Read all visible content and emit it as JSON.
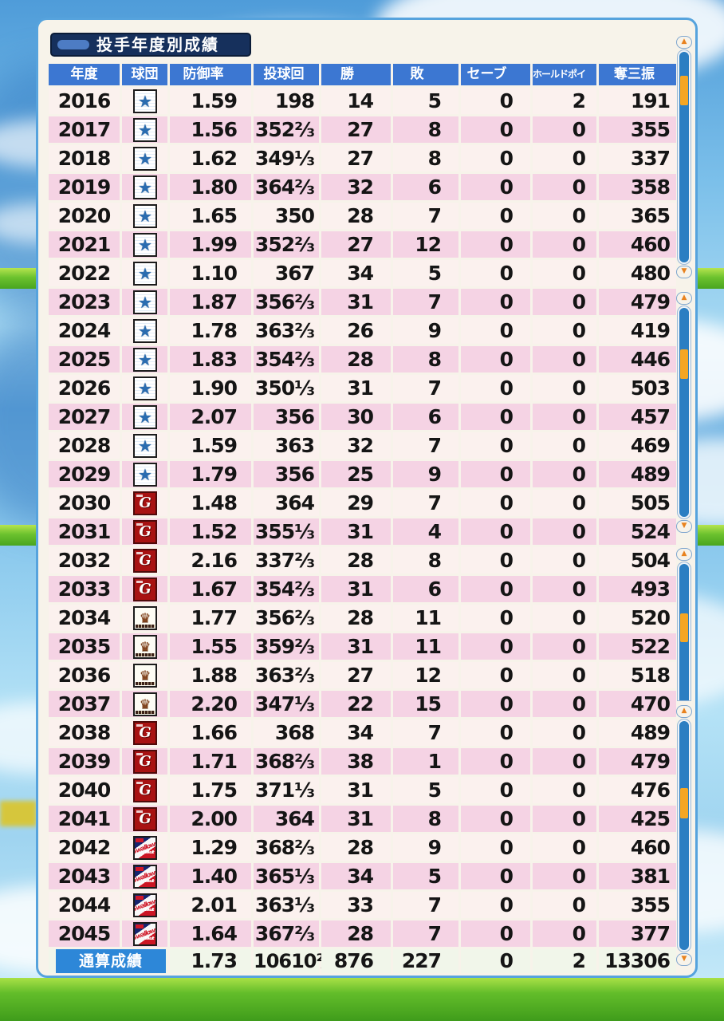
{
  "title": "投手年度別成績",
  "columns": [
    "年度",
    "球団",
    "防御率",
    "投球回",
    "勝",
    "敗",
    "セーブ",
    "ホールドポイント",
    "奪三振"
  ],
  "teams": {
    "baystars": {
      "glyph": "★"
    },
    "giants": {
      "letter": "G"
    },
    "crest": {
      "glyph": "♛"
    },
    "swallows": {
      "script": "Swallows",
      "brand": "Yakult"
    }
  },
  "rows": [
    {
      "year": "2016",
      "team": "baystars",
      "era": "1.59",
      "ip": "198",
      "w": "14",
      "l": "5",
      "sv": "0",
      "hp": "2",
      "so": "191",
      "gold": []
    },
    {
      "year": "2017",
      "team": "baystars",
      "era": "1.56",
      "ip": "352⅔",
      "w": "27",
      "l": "8",
      "sv": "0",
      "hp": "0",
      "so": "355",
      "gold": [
        "era",
        "w",
        "so"
      ]
    },
    {
      "year": "2018",
      "team": "baystars",
      "era": "1.62",
      "ip": "349⅓",
      "w": "27",
      "l": "8",
      "sv": "0",
      "hp": "0",
      "so": "337",
      "gold": [
        "era",
        "w",
        "so"
      ]
    },
    {
      "year": "2019",
      "team": "baystars",
      "era": "1.80",
      "ip": "364⅔",
      "w": "32",
      "l": "6",
      "sv": "0",
      "hp": "0",
      "so": "358",
      "gold": [
        "w",
        "so"
      ]
    },
    {
      "year": "2020",
      "team": "baystars",
      "era": "1.65",
      "ip": "350",
      "w": "28",
      "l": "7",
      "sv": "0",
      "hp": "0",
      "so": "365",
      "gold": [
        "era",
        "w",
        "so"
      ]
    },
    {
      "year": "2021",
      "team": "baystars",
      "era": "1.99",
      "ip": "352⅔",
      "w": "27",
      "l": "12",
      "sv": "0",
      "hp": "0",
      "so": "460",
      "gold": [
        "w",
        "so"
      ]
    },
    {
      "year": "2022",
      "team": "baystars",
      "era": "1.10",
      "ip": "367",
      "w": "34",
      "l": "5",
      "sv": "0",
      "hp": "0",
      "so": "480",
      "gold": [
        "era",
        "w",
        "so"
      ]
    },
    {
      "year": "2023",
      "team": "baystars",
      "era": "1.87",
      "ip": "356⅔",
      "w": "31",
      "l": "7",
      "sv": "0",
      "hp": "0",
      "so": "479",
      "gold": [
        "era",
        "w",
        "so"
      ]
    },
    {
      "year": "2024",
      "team": "baystars",
      "era": "1.78",
      "ip": "363⅔",
      "w": "26",
      "l": "9",
      "sv": "0",
      "hp": "0",
      "so": "419",
      "gold": [
        "era",
        "w",
        "so"
      ]
    },
    {
      "year": "2025",
      "team": "baystars",
      "era": "1.83",
      "ip": "354⅔",
      "w": "28",
      "l": "8",
      "sv": "0",
      "hp": "0",
      "so": "446",
      "gold": [
        "w",
        "so"
      ]
    },
    {
      "year": "2026",
      "team": "baystars",
      "era": "1.90",
      "ip": "350⅓",
      "w": "31",
      "l": "7",
      "sv": "0",
      "hp": "0",
      "so": "503",
      "gold": [
        "era",
        "w",
        "so"
      ]
    },
    {
      "year": "2027",
      "team": "baystars",
      "era": "2.07",
      "ip": "356",
      "w": "30",
      "l": "6",
      "sv": "0",
      "hp": "0",
      "so": "457",
      "gold": [
        "w",
        "so"
      ]
    },
    {
      "year": "2028",
      "team": "baystars",
      "era": "1.59",
      "ip": "363",
      "w": "32",
      "l": "7",
      "sv": "0",
      "hp": "0",
      "so": "469",
      "gold": [
        "era",
        "w",
        "so"
      ]
    },
    {
      "year": "2029",
      "team": "baystars",
      "era": "1.79",
      "ip": "356",
      "w": "25",
      "l": "9",
      "sv": "0",
      "hp": "0",
      "so": "489",
      "gold": [
        "era",
        "w",
        "so"
      ]
    },
    {
      "year": "2030",
      "team": "giants",
      "era": "1.48",
      "ip": "364",
      "w": "29",
      "l": "7",
      "sv": "0",
      "hp": "0",
      "so": "505",
      "gold": [
        "era",
        "w",
        "so"
      ]
    },
    {
      "year": "2031",
      "team": "giants",
      "era": "1.52",
      "ip": "355⅓",
      "w": "31",
      "l": "4",
      "sv": "0",
      "hp": "0",
      "so": "524",
      "gold": [
        "era",
        "w",
        "so"
      ]
    },
    {
      "year": "2032",
      "team": "giants",
      "era": "2.16",
      "ip": "337⅔",
      "w": "28",
      "l": "8",
      "sv": "0",
      "hp": "0",
      "so": "504",
      "gold": [
        "era",
        "w",
        "so"
      ]
    },
    {
      "year": "2033",
      "team": "giants",
      "era": "1.67",
      "ip": "354⅔",
      "w": "31",
      "l": "6",
      "sv": "0",
      "hp": "0",
      "so": "493",
      "gold": [
        "era",
        "w",
        "so"
      ]
    },
    {
      "year": "2034",
      "team": "crest",
      "era": "1.77",
      "ip": "356⅔",
      "w": "28",
      "l": "11",
      "sv": "0",
      "hp": "0",
      "so": "520",
      "gold": [
        "era",
        "w",
        "so"
      ]
    },
    {
      "year": "2035",
      "team": "crest",
      "era": "1.55",
      "ip": "359⅔",
      "w": "31",
      "l": "11",
      "sv": "0",
      "hp": "0",
      "so": "522",
      "gold": [
        "w",
        "so"
      ]
    },
    {
      "year": "2036",
      "team": "crest",
      "era": "1.88",
      "ip": "363⅔",
      "w": "27",
      "l": "12",
      "sv": "0",
      "hp": "0",
      "so": "518",
      "gold": [
        "era",
        "w",
        "so"
      ]
    },
    {
      "year": "2037",
      "team": "crest",
      "era": "2.20",
      "ip": "347⅓",
      "w": "22",
      "l": "15",
      "sv": "0",
      "hp": "0",
      "so": "470",
      "gold": [
        "era",
        "w",
        "so"
      ]
    },
    {
      "year": "2038",
      "team": "giants",
      "era": "1.66",
      "ip": "368",
      "w": "34",
      "l": "7",
      "sv": "0",
      "hp": "0",
      "so": "489",
      "gold": [
        "era",
        "w",
        "so"
      ]
    },
    {
      "year": "2039",
      "team": "giants",
      "era": "1.71",
      "ip": "368⅔",
      "w": "38",
      "l": "1",
      "sv": "0",
      "hp": "0",
      "so": "479",
      "gold": [
        "era",
        "w",
        "so"
      ]
    },
    {
      "year": "2040",
      "team": "giants",
      "era": "1.75",
      "ip": "371⅓",
      "w": "31",
      "l": "5",
      "sv": "0",
      "hp": "0",
      "so": "476",
      "gold": [
        "w",
        "so"
      ]
    },
    {
      "year": "2041",
      "team": "giants",
      "era": "2.00",
      "ip": "364",
      "w": "31",
      "l": "8",
      "sv": "0",
      "hp": "0",
      "so": "425",
      "gold": [
        "era",
        "w",
        "so"
      ]
    },
    {
      "year": "2042",
      "team": "swallows",
      "era": "1.29",
      "ip": "368⅔",
      "w": "28",
      "l": "9",
      "sv": "0",
      "hp": "0",
      "so": "460",
      "gold": [
        "era",
        "w",
        "so"
      ]
    },
    {
      "year": "2043",
      "team": "swallows",
      "era": "1.40",
      "ip": "365⅓",
      "w": "34",
      "l": "5",
      "sv": "0",
      "hp": "0",
      "so": "381",
      "gold": [
        "era",
        "w",
        "so"
      ]
    },
    {
      "year": "2044",
      "team": "swallows",
      "era": "2.01",
      "ip": "363⅓",
      "w": "33",
      "l": "7",
      "sv": "0",
      "hp": "0",
      "so": "355",
      "gold": [
        "era",
        "w",
        "so"
      ]
    },
    {
      "year": "2045",
      "team": "swallows",
      "era": "1.64",
      "ip": "367⅔",
      "w": "28",
      "l": "7",
      "sv": "0",
      "hp": "0",
      "so": "377",
      "gold": []
    }
  ],
  "totals": {
    "label": "通算成績",
    "era": "1.73",
    "ip": "10610⅔",
    "w": "876",
    "l": "227",
    "sv": "0",
    "hp": "2",
    "so": "13306"
  },
  "colors": {
    "gold_text": "#c49a10",
    "magenta_text": "#c32a96",
    "header_blue": "#3c77d2",
    "totals_label_blue": "#2d87d8",
    "row_pink": "#f5d3e4",
    "row_light": "#fbf1ee",
    "panel_border_blue": "#56a3dd",
    "scrollbar_track_blue": "#2b7ec2",
    "scrollbar_thumb_orange": "#f5a623"
  }
}
